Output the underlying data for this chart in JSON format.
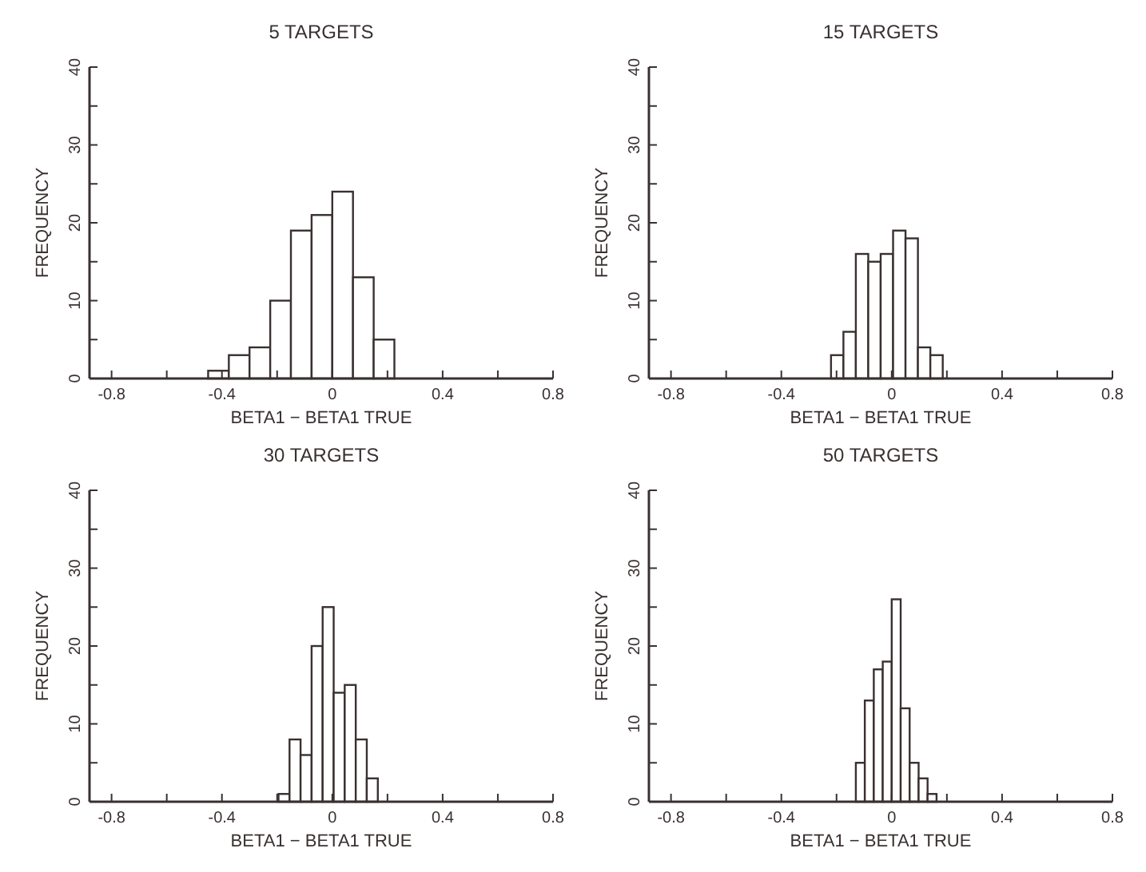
{
  "chart_data": [
    {
      "type": "histogram",
      "title": "5 TARGETS",
      "xlabel": "BETA1 − BETA1 TRUE",
      "ylabel": "FREQUENCY",
      "bins": [
        -0.45,
        -0.375,
        -0.3,
        -0.225,
        -0.15,
        -0.075,
        0,
        0.075,
        0.15,
        0.225
      ],
      "values": [
        1,
        3,
        4,
        10,
        19,
        21,
        24,
        13,
        5
      ],
      "color": "#ffffff",
      "xlim": [
        -0.88,
        0.8
      ],
      "ylim": [
        0,
        40
      ],
      "xticks": [
        -0.8,
        {
          "value": -0.6,
          "label": null
        },
        -0.4,
        {
          "value": -0.2,
          "label": null
        },
        0,
        {
          "value": 0.2,
          "label": null
        },
        0.4,
        {
          "value": 0.6,
          "label": null
        },
        0.8
      ],
      "yticks": [
        0,
        {
          "value": 5,
          "label": null
        },
        10,
        {
          "value": 15,
          "label": null
        },
        20,
        {
          "value": 25,
          "label": null
        },
        30,
        {
          "value": 35,
          "label": null
        },
        40
      ],
      "grid": false
    },
    {
      "type": "histogram",
      "title": "15 TARGETS",
      "xlabel": "BETA1 − BETA1 TRUE",
      "ylabel": "FREQUENCY",
      "bins": [
        -0.22,
        -0.175,
        -0.13,
        -0.085,
        -0.04,
        0.005,
        0.05,
        0.095,
        0.14,
        0.185
      ],
      "values": [
        3,
        6,
        16,
        15,
        16,
        19,
        18,
        4,
        3
      ],
      "color": "#ffffff",
      "xlim": [
        -0.88,
        0.8
      ],
      "ylim": [
        0,
        40
      ],
      "xticks": [
        -0.8,
        {
          "value": -0.6,
          "label": null
        },
        -0.4,
        {
          "value": -0.2,
          "label": null
        },
        0,
        {
          "value": 0.2,
          "label": null
        },
        0.4,
        {
          "value": 0.6,
          "label": null
        },
        0.8
      ],
      "yticks": [
        0,
        {
          "value": 5,
          "label": null
        },
        10,
        {
          "value": 15,
          "label": null
        },
        20,
        {
          "value": 25,
          "label": null
        },
        30,
        {
          "value": 35,
          "label": null
        },
        40
      ],
      "grid": false
    },
    {
      "type": "histogram",
      "title": "30 TARGETS",
      "xlabel": "BETA1 − BETA1 TRUE",
      "ylabel": "FREQUENCY",
      "bins": [
        -0.195,
        -0.155,
        -0.115,
        -0.075,
        -0.035,
        0.005,
        0.045,
        0.085,
        0.125,
        0.165
      ],
      "values": [
        1,
        8,
        6,
        20,
        25,
        14,
        15,
        8,
        3
      ],
      "color": "#ffffff",
      "xlim": [
        -0.88,
        0.8
      ],
      "ylim": [
        0,
        40
      ],
      "xticks": [
        -0.8,
        {
          "value": -0.6,
          "label": null
        },
        -0.4,
        {
          "value": -0.2,
          "label": null
        },
        0,
        {
          "value": 0.2,
          "label": null
        },
        0.4,
        {
          "value": 0.6,
          "label": null
        },
        0.8
      ],
      "yticks": [
        0,
        {
          "value": 5,
          "label": null
        },
        10,
        {
          "value": 15,
          "label": null
        },
        20,
        {
          "value": 25,
          "label": null
        },
        30,
        {
          "value": 35,
          "label": null
        },
        40
      ],
      "grid": false
    },
    {
      "type": "histogram",
      "title": "50 TARGETS",
      "xlabel": "BETA1 − BETA1 TRUE",
      "ylabel": "FREQUENCY",
      "bins": [
        -0.13,
        -0.0975,
        -0.065,
        -0.0325,
        0,
        0.0325,
        0.065,
        0.0975,
        0.13,
        0.1625
      ],
      "values": [
        5,
        13,
        17,
        18,
        26,
        12,
        5,
        3,
        1
      ],
      "color": "#ffffff",
      "xlim": [
        -0.88,
        0.8
      ],
      "ylim": [
        0,
        40
      ],
      "xticks": [
        -0.8,
        {
          "value": -0.6,
          "label": null
        },
        -0.4,
        {
          "value": -0.2,
          "label": null
        },
        0,
        {
          "value": 0.2,
          "label": null
        },
        0.4,
        {
          "value": 0.6,
          "label": null
        },
        0.8
      ],
      "yticks": [
        0,
        {
          "value": 5,
          "label": null
        },
        10,
        {
          "value": 15,
          "label": null
        },
        20,
        {
          "value": 25,
          "label": null
        },
        30,
        {
          "value": 35,
          "label": null
        },
        40
      ],
      "grid": false
    }
  ]
}
